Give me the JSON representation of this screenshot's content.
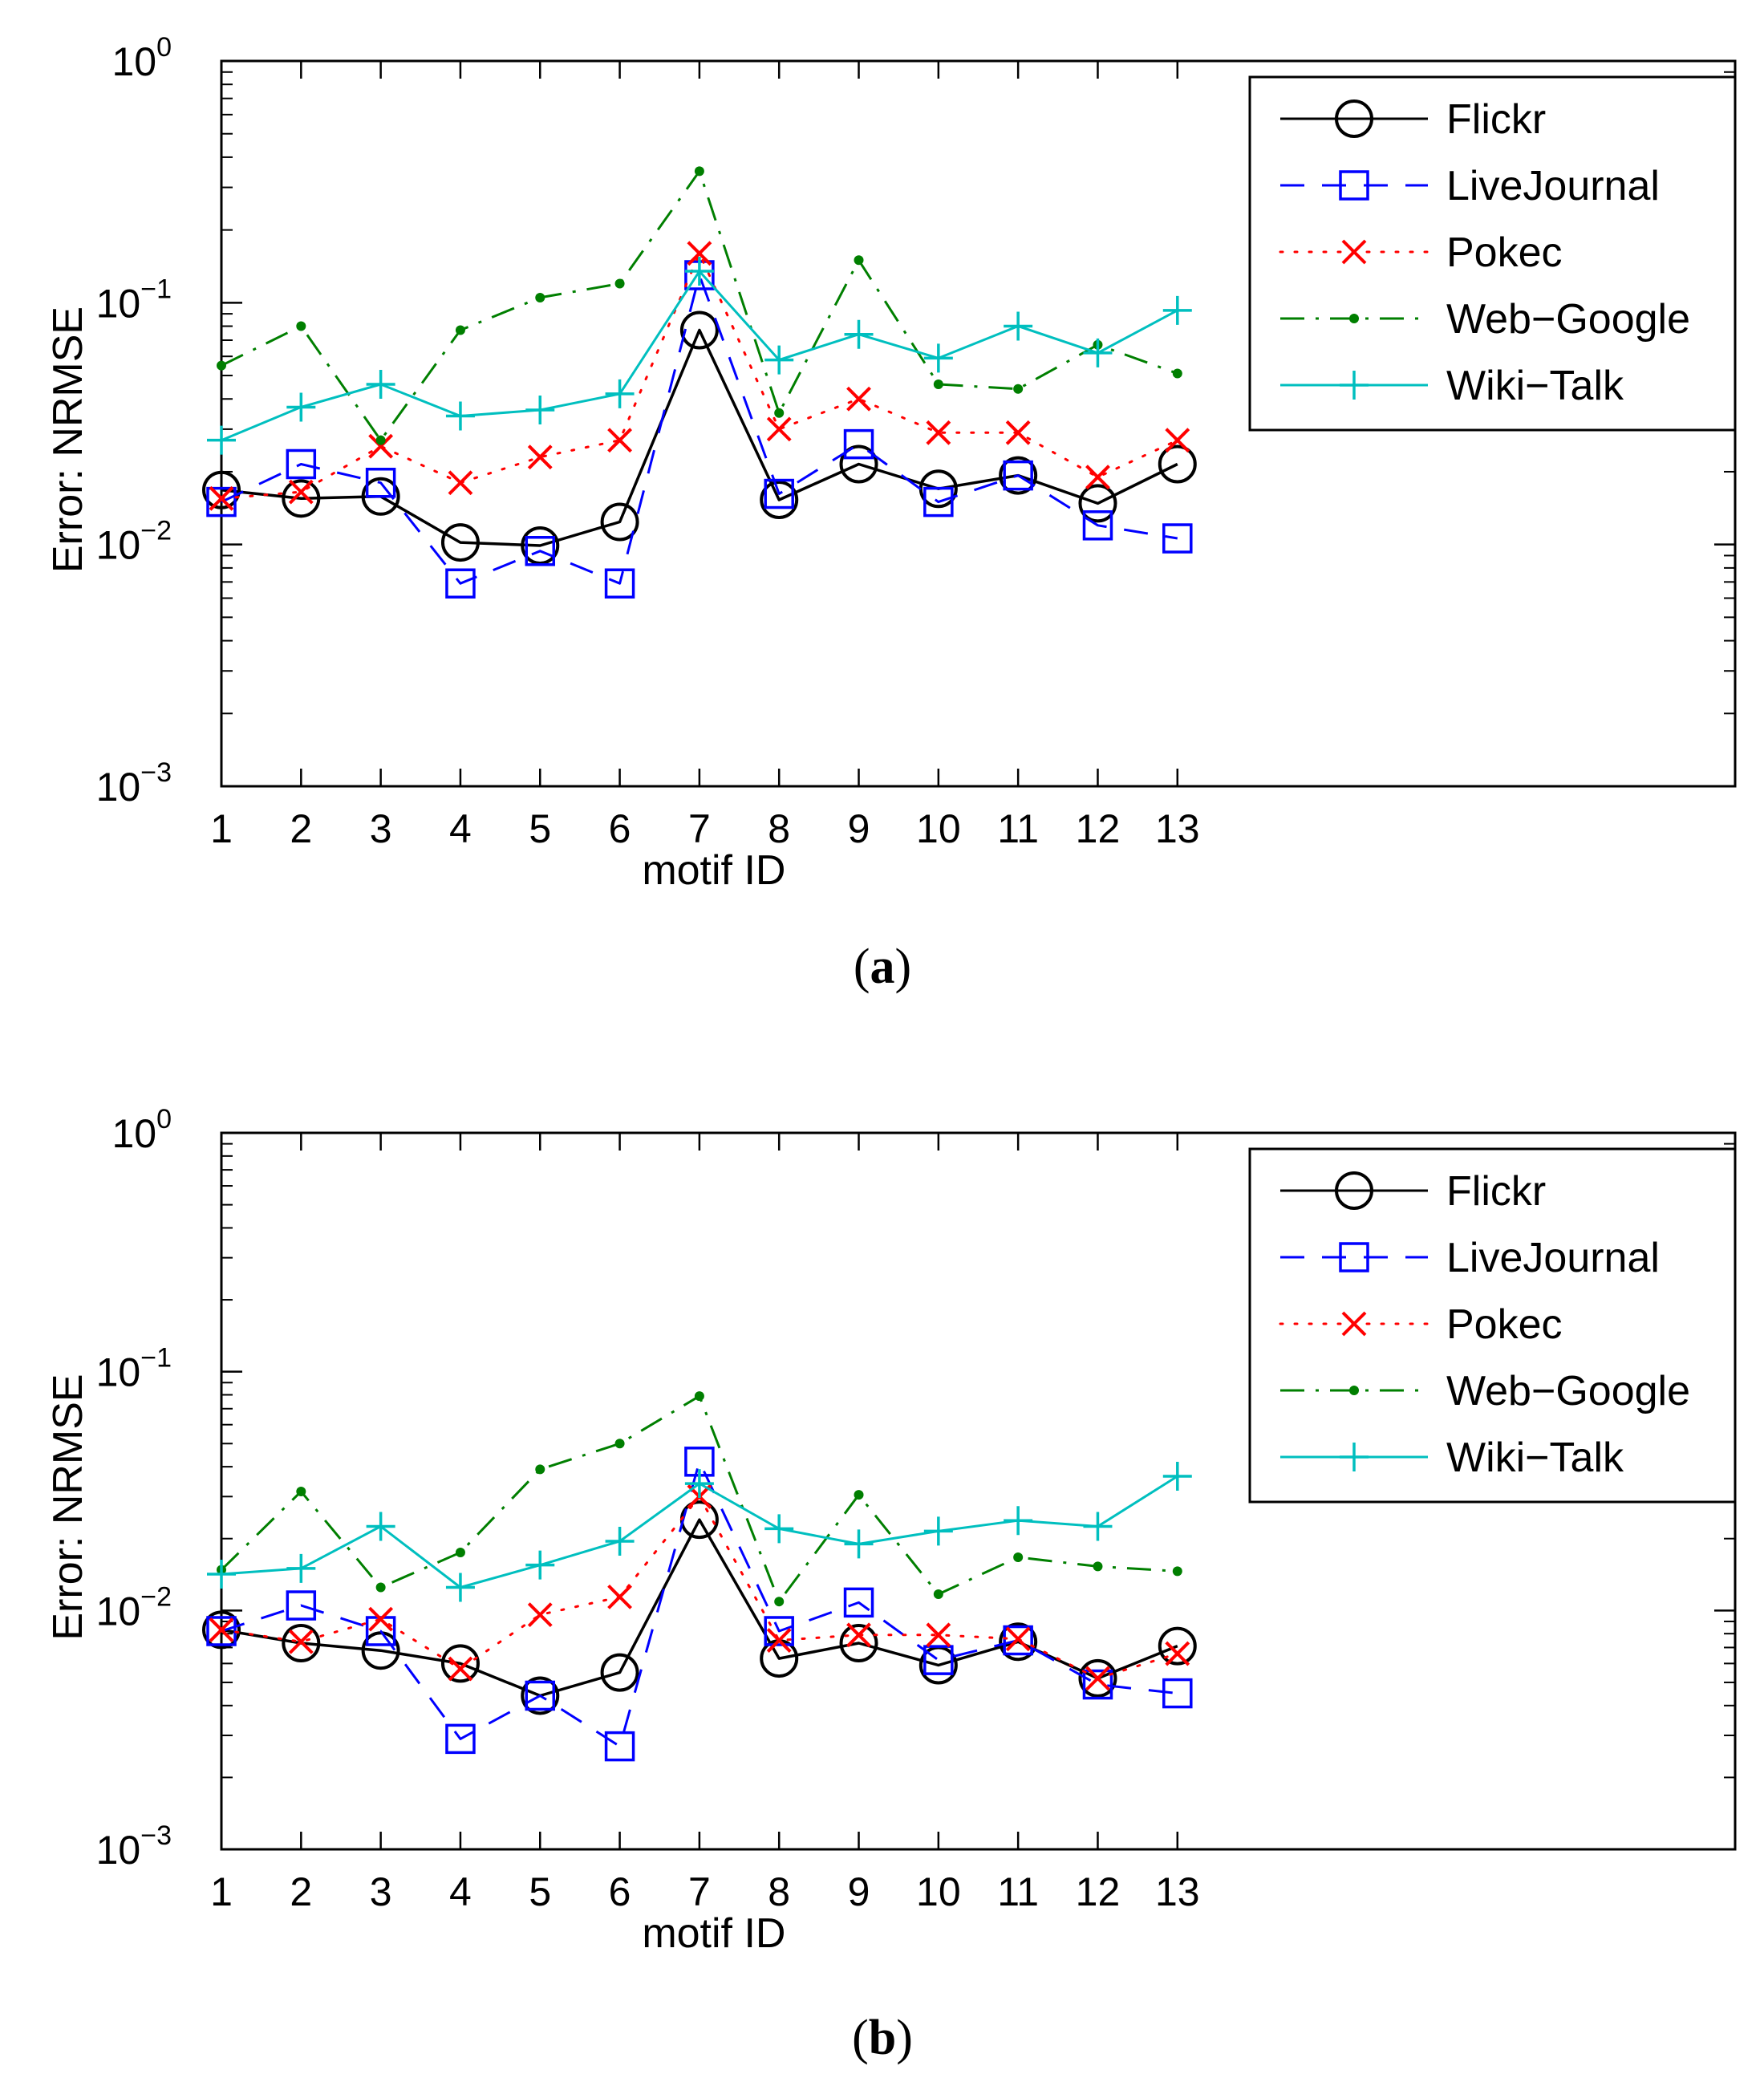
{
  "chart_data": [
    {
      "type": "line",
      "caption_letter": "a",
      "xlabel": "motif ID",
      "ylabel": "Error: NRMSE",
      "yscale": "log",
      "ylim": [
        0.001,
        1
      ],
      "xlim": [
        1,
        20
      ],
      "x": [
        1,
        2,
        3,
        4,
        5,
        6,
        7,
        8,
        9,
        10,
        11,
        12,
        13
      ],
      "x_tick_labels": [
        "1",
        "2",
        "3",
        "4",
        "5",
        "6",
        "7",
        "8",
        "9",
        "10",
        "11",
        "12",
        "13"
      ],
      "y_ticks": [
        {
          "value": 0.001,
          "base": "10",
          "exponent": "−3"
        },
        {
          "value": 0.01,
          "base": "10",
          "exponent": "−2"
        },
        {
          "value": 0.1,
          "base": "10",
          "exponent": "−1"
        },
        {
          "value": 1,
          "base": "10",
          "exponent": "0"
        }
      ],
      "legend_position": "top-right",
      "series": [
        {
          "name": "Flickr",
          "values": [
            0.0168,
            0.0155,
            0.0158,
            0.0102,
            0.0099,
            0.0124,
            0.077,
            0.0153,
            0.0215,
            0.017,
            0.0193,
            0.0148,
            0.0215
          ]
        },
        {
          "name": "LiveJournal",
          "values": [
            0.015,
            0.0215,
            0.018,
            0.0069,
            0.0094,
            0.0069,
            0.13,
            0.0162,
            0.026,
            0.015,
            0.0193,
            0.012,
            0.0106
          ]
        },
        {
          "name": "Pokec",
          "values": [
            0.0155,
            0.0165,
            0.0255,
            0.018,
            0.023,
            0.027,
            0.16,
            0.03,
            0.04,
            0.029,
            0.029,
            0.019,
            0.027
          ]
        },
        {
          "name": "Web−Google",
          "values": [
            0.055,
            0.08,
            0.027,
            0.077,
            0.105,
            0.12,
            0.35,
            0.035,
            0.15,
            0.046,
            0.044,
            0.067,
            0.051
          ]
        },
        {
          "name": "Wiki−Talk",
          "values": [
            0.027,
            0.037,
            0.046,
            0.034,
            0.036,
            0.042,
            0.135,
            0.058,
            0.074,
            0.059,
            0.08,
            0.062,
            0.093
          ]
        }
      ]
    },
    {
      "type": "line",
      "caption_letter": "b",
      "xlabel": "motif ID",
      "ylabel": "Error: NRMSE",
      "yscale": "log",
      "ylim": [
        0.001,
        1
      ],
      "xlim": [
        1,
        20
      ],
      "x": [
        1,
        2,
        3,
        4,
        5,
        6,
        7,
        8,
        9,
        10,
        11,
        12,
        13
      ],
      "x_tick_labels": [
        "1",
        "2",
        "3",
        "4",
        "5",
        "6",
        "7",
        "8",
        "9",
        "10",
        "11",
        "12",
        "13"
      ],
      "y_ticks": [
        {
          "value": 0.001,
          "base": "10",
          "exponent": "−3"
        },
        {
          "value": 0.01,
          "base": "10",
          "exponent": "−2"
        },
        {
          "value": 0.1,
          "base": "10",
          "exponent": "−1"
        },
        {
          "value": 1,
          "base": "10",
          "exponent": "0"
        }
      ],
      "legend_position": "top-right",
      "series": [
        {
          "name": "Flickr",
          "values": [
            0.0083,
            0.0073,
            0.0068,
            0.006,
            0.0044,
            0.0055,
            0.024,
            0.0063,
            0.0073,
            0.0059,
            0.0074,
            0.0052,
            0.0071
          ]
        },
        {
          "name": "LiveJournal",
          "values": [
            0.0082,
            0.0105,
            0.0082,
            0.0029,
            0.0044,
            0.0027,
            0.042,
            0.0082,
            0.0108,
            0.0062,
            0.0075,
            0.0049,
            0.0045
          ]
        },
        {
          "name": "Pokec",
          "values": [
            0.0083,
            0.0074,
            0.0092,
            0.0057,
            0.0096,
            0.0114,
            0.03,
            0.0075,
            0.0079,
            0.0079,
            0.0076,
            0.0052,
            0.0066
          ]
        },
        {
          "name": "Web−Google",
          "values": [
            0.0148,
            0.0315,
            0.0125,
            0.0175,
            0.039,
            0.05,
            0.079,
            0.0109,
            0.0305,
            0.0117,
            0.0167,
            0.0153,
            0.0146
          ]
        },
        {
          "name": "Wiki−Talk",
          "values": [
            0.0142,
            0.015,
            0.0225,
            0.0125,
            0.0155,
            0.0195,
            0.034,
            0.022,
            0.019,
            0.0215,
            0.0238,
            0.0225,
            0.0365
          ]
        }
      ]
    }
  ],
  "series_styles": [
    {
      "color": "#000000",
      "dash": "",
      "marker": "circle"
    },
    {
      "color": "#0000ff",
      "dash": "30,22",
      "marker": "square"
    },
    {
      "color": "#ff0000",
      "dash": "3,15",
      "marker": "x"
    },
    {
      "color": "#007f00",
      "dash": "30,14,4,14",
      "marker": "dot"
    },
    {
      "color": "#00bfbf",
      "dash": "",
      "marker": "plus"
    }
  ]
}
